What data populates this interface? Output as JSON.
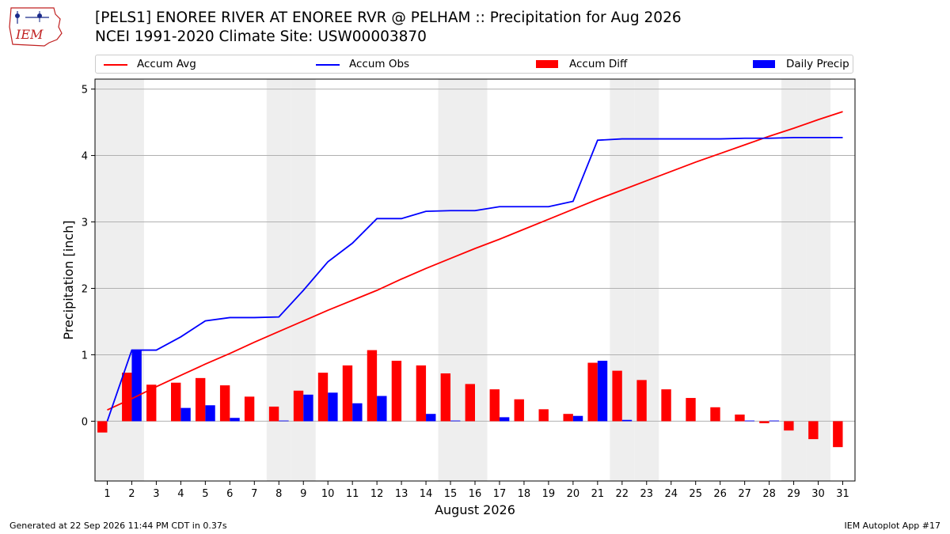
{
  "header": {
    "logo_text": "IEM",
    "title_line1": "[PELS1] ENOREE RIVER  AT ENOREE RVR @ PELHAM :: Precipitation for Aug 2026",
    "title_line2": "NCEI 1991-2020 Climate Site: USW00003870"
  },
  "legend": {
    "accum_avg": "Accum Avg",
    "accum_obs": "Accum Obs",
    "accum_diff": "Accum Diff",
    "daily_precip": "Daily Precip"
  },
  "footer": {
    "left": "Generated at 22 Sep 2026 11:44 PM CDT in 0.37s",
    "right": "IEM Autoplot App #17"
  },
  "colors": {
    "avg": "#ff0000",
    "obs": "#0000ff",
    "diff": "#ff0000",
    "daily": "#0000ff",
    "weekend_shade": "#eeeeee",
    "grid": "#b0b0b0"
  },
  "chart_data": {
    "type": "bar",
    "xlabel": "August 2026",
    "ylabel": "Precipitation [inch]",
    "x": [
      1,
      2,
      3,
      4,
      5,
      6,
      7,
      8,
      9,
      10,
      11,
      12,
      13,
      14,
      15,
      16,
      17,
      18,
      19,
      20,
      21,
      22,
      23,
      24,
      25,
      26,
      27,
      28,
      29,
      30,
      31
    ],
    "xlim": [
      0.5,
      31.5
    ],
    "ylim": [
      -0.9,
      5.15
    ],
    "yticks": [
      0,
      1,
      2,
      3,
      4,
      5
    ],
    "grid": true,
    "shaded_weekend_days": [
      1,
      2,
      8,
      9,
      15,
      16,
      22,
      23,
      29,
      30
    ],
    "series": [
      {
        "name": "Accum Avg",
        "kind": "line",
        "values": [
          0.17,
          0.34,
          0.52,
          0.69,
          0.86,
          1.02,
          1.19,
          1.35,
          1.51,
          1.67,
          1.82,
          1.97,
          2.14,
          2.3,
          2.45,
          2.6,
          2.74,
          2.89,
          3.04,
          3.19,
          3.34,
          3.48,
          3.62,
          3.76,
          3.9,
          4.03,
          4.16,
          4.29,
          4.41,
          4.54,
          4.66
        ]
      },
      {
        "name": "Accum Obs",
        "kind": "line",
        "values": [
          0.0,
          1.07,
          1.07,
          1.27,
          1.51,
          1.56,
          1.56,
          1.57,
          1.97,
          2.4,
          2.68,
          3.05,
          3.05,
          3.16,
          3.17,
          3.17,
          3.23,
          3.23,
          3.23,
          3.31,
          4.23,
          4.25,
          4.25,
          4.25,
          4.25,
          4.25,
          4.26,
          4.26,
          4.27,
          4.27,
          4.27
        ]
      },
      {
        "name": "Accum Diff",
        "kind": "bar",
        "values": [
          -0.17,
          0.73,
          0.55,
          0.58,
          0.65,
          0.54,
          0.37,
          0.22,
          0.46,
          0.73,
          0.84,
          1.07,
          0.91,
          0.84,
          0.72,
          0.56,
          0.48,
          0.33,
          0.18,
          0.11,
          0.88,
          0.76,
          0.62,
          0.48,
          0.35,
          0.21,
          0.1,
          -0.03,
          -0.14,
          -0.27,
          -0.39
        ]
      },
      {
        "name": "Daily Precip",
        "kind": "bar",
        "values": [
          0.0,
          1.07,
          0.0,
          0.2,
          0.24,
          0.05,
          0.0,
          0.01,
          0.4,
          0.43,
          0.27,
          0.38,
          0.0,
          0.11,
          0.01,
          0.0,
          0.06,
          0.0,
          0.0,
          0.08,
          0.91,
          0.02,
          0.0,
          0.0,
          0.0,
          0.0,
          0.01,
          0.01,
          0.0,
          0.0,
          0.0
        ]
      }
    ]
  }
}
